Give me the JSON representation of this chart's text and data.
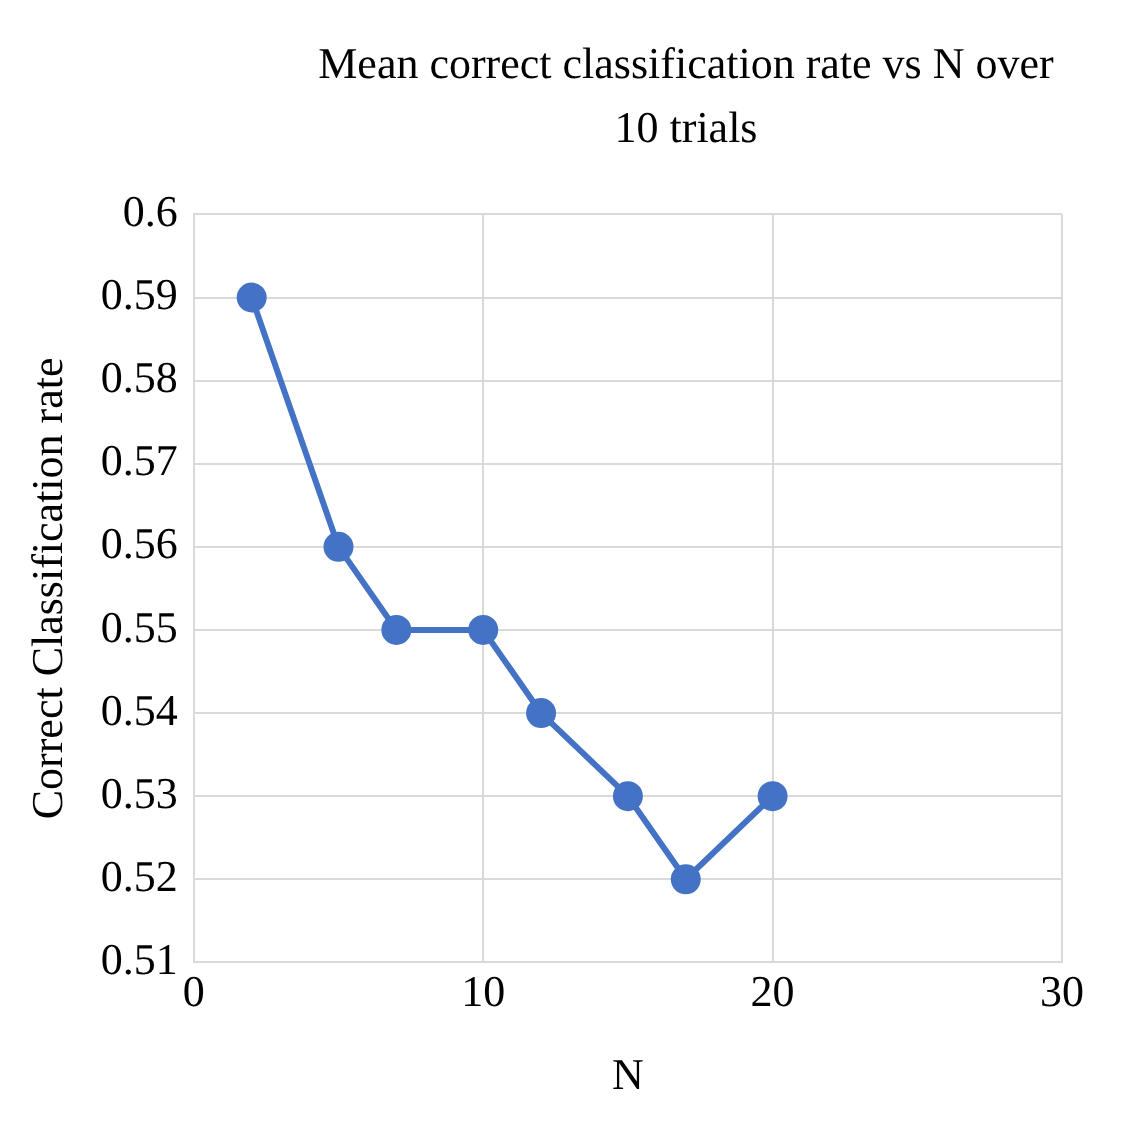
{
  "chart_data": {
    "type": "line",
    "title": "Mean correct classification rate vs N over 10 trials",
    "xlabel": "N",
    "ylabel": "Correct Classification rate",
    "x": [
      2,
      5,
      7,
      10,
      12,
      15,
      17,
      20
    ],
    "series": [
      {
        "color": "#4472c4",
        "values": [
          0.59,
          0.56,
          0.55,
          0.55,
          0.54,
          0.53,
          0.52,
          0.53
        ]
      }
    ],
    "xlim": [
      0,
      30
    ],
    "xticks": [
      0,
      10,
      20,
      30
    ],
    "ylim": [
      0.51,
      0.6
    ],
    "yticks": [
      0.51,
      0.52,
      0.53,
      0.54,
      0.55,
      0.56,
      0.57,
      0.58,
      0.59,
      0.6
    ],
    "grid": true,
    "marker": "circle",
    "line_style": "solid"
  }
}
